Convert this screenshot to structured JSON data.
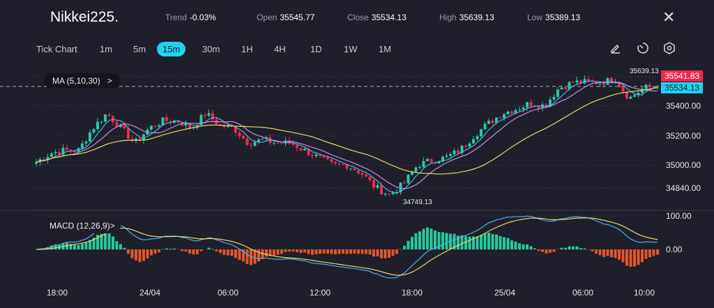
{
  "header": {
    "title": "Nikkei225.",
    "trend_label": "Trend",
    "trend": "-0.03%",
    "open_label": "Open",
    "open": "35545.77",
    "close_label": "Close",
    "close": "35534.13",
    "high_label": "High",
    "high": "35639.13",
    "low_label": "Low",
    "low": "35389.13",
    "close_icon": "✕"
  },
  "timeframes": {
    "tick": "Tick Chart",
    "items": [
      "1m",
      "5m",
      "15m",
      "30m",
      "1H",
      "4H",
      "1D",
      "1W",
      "1M"
    ],
    "active": "15m"
  },
  "tools": [
    "draw-icon",
    "timer-icon",
    "settings-icon"
  ],
  "indicators": {
    "ma": "MA (5,10,30)",
    "macd": "MACD (12,26,9)",
    "chevron": ">"
  },
  "colors": {
    "up": "#26c99a",
    "down": "#f0284a",
    "ma5": "#4fb0e8",
    "ma10": "#c78bdc",
    "ma30": "#e8d56a",
    "accent": "#1fd3f0",
    "macd_hist_down": "#e0562a"
  },
  "chart_data": {
    "type": "candlestick",
    "y_ticks": [
      "35400.00",
      "35200.00",
      "35000.00",
      "34840.00"
    ],
    "macd_ticks": [
      "100.00",
      "0.00"
    ],
    "x_ticks": [
      "18:00",
      "24/04",
      "06:00",
      "12:00",
      "18:00",
      "25/04",
      "06:00",
      "10:00"
    ],
    "price_tag_red": "35541.83",
    "price_tag_cyan": "35534.13",
    "high_mark": "35639.13",
    "low_mark": "34749.13",
    "ylim": [
      34700,
      35660
    ],
    "hourly_closes": [
      35020,
      35080,
      35100,
      35100,
      35250,
      35350,
      35250,
      35150,
      35250,
      35300,
      35300,
      35250,
      35350,
      35270,
      35250,
      35150,
      35170,
      35150,
      35150,
      35100,
      35050,
      35000,
      35000,
      34950,
      34850,
      34800,
      34870,
      35000,
      35030,
      35050,
      35100,
      35200,
      35280,
      35350,
      35380,
      35420,
      35400,
      35520,
      35560,
      35560,
      35560,
      35580,
      35450,
      35520,
      35534
    ]
  }
}
